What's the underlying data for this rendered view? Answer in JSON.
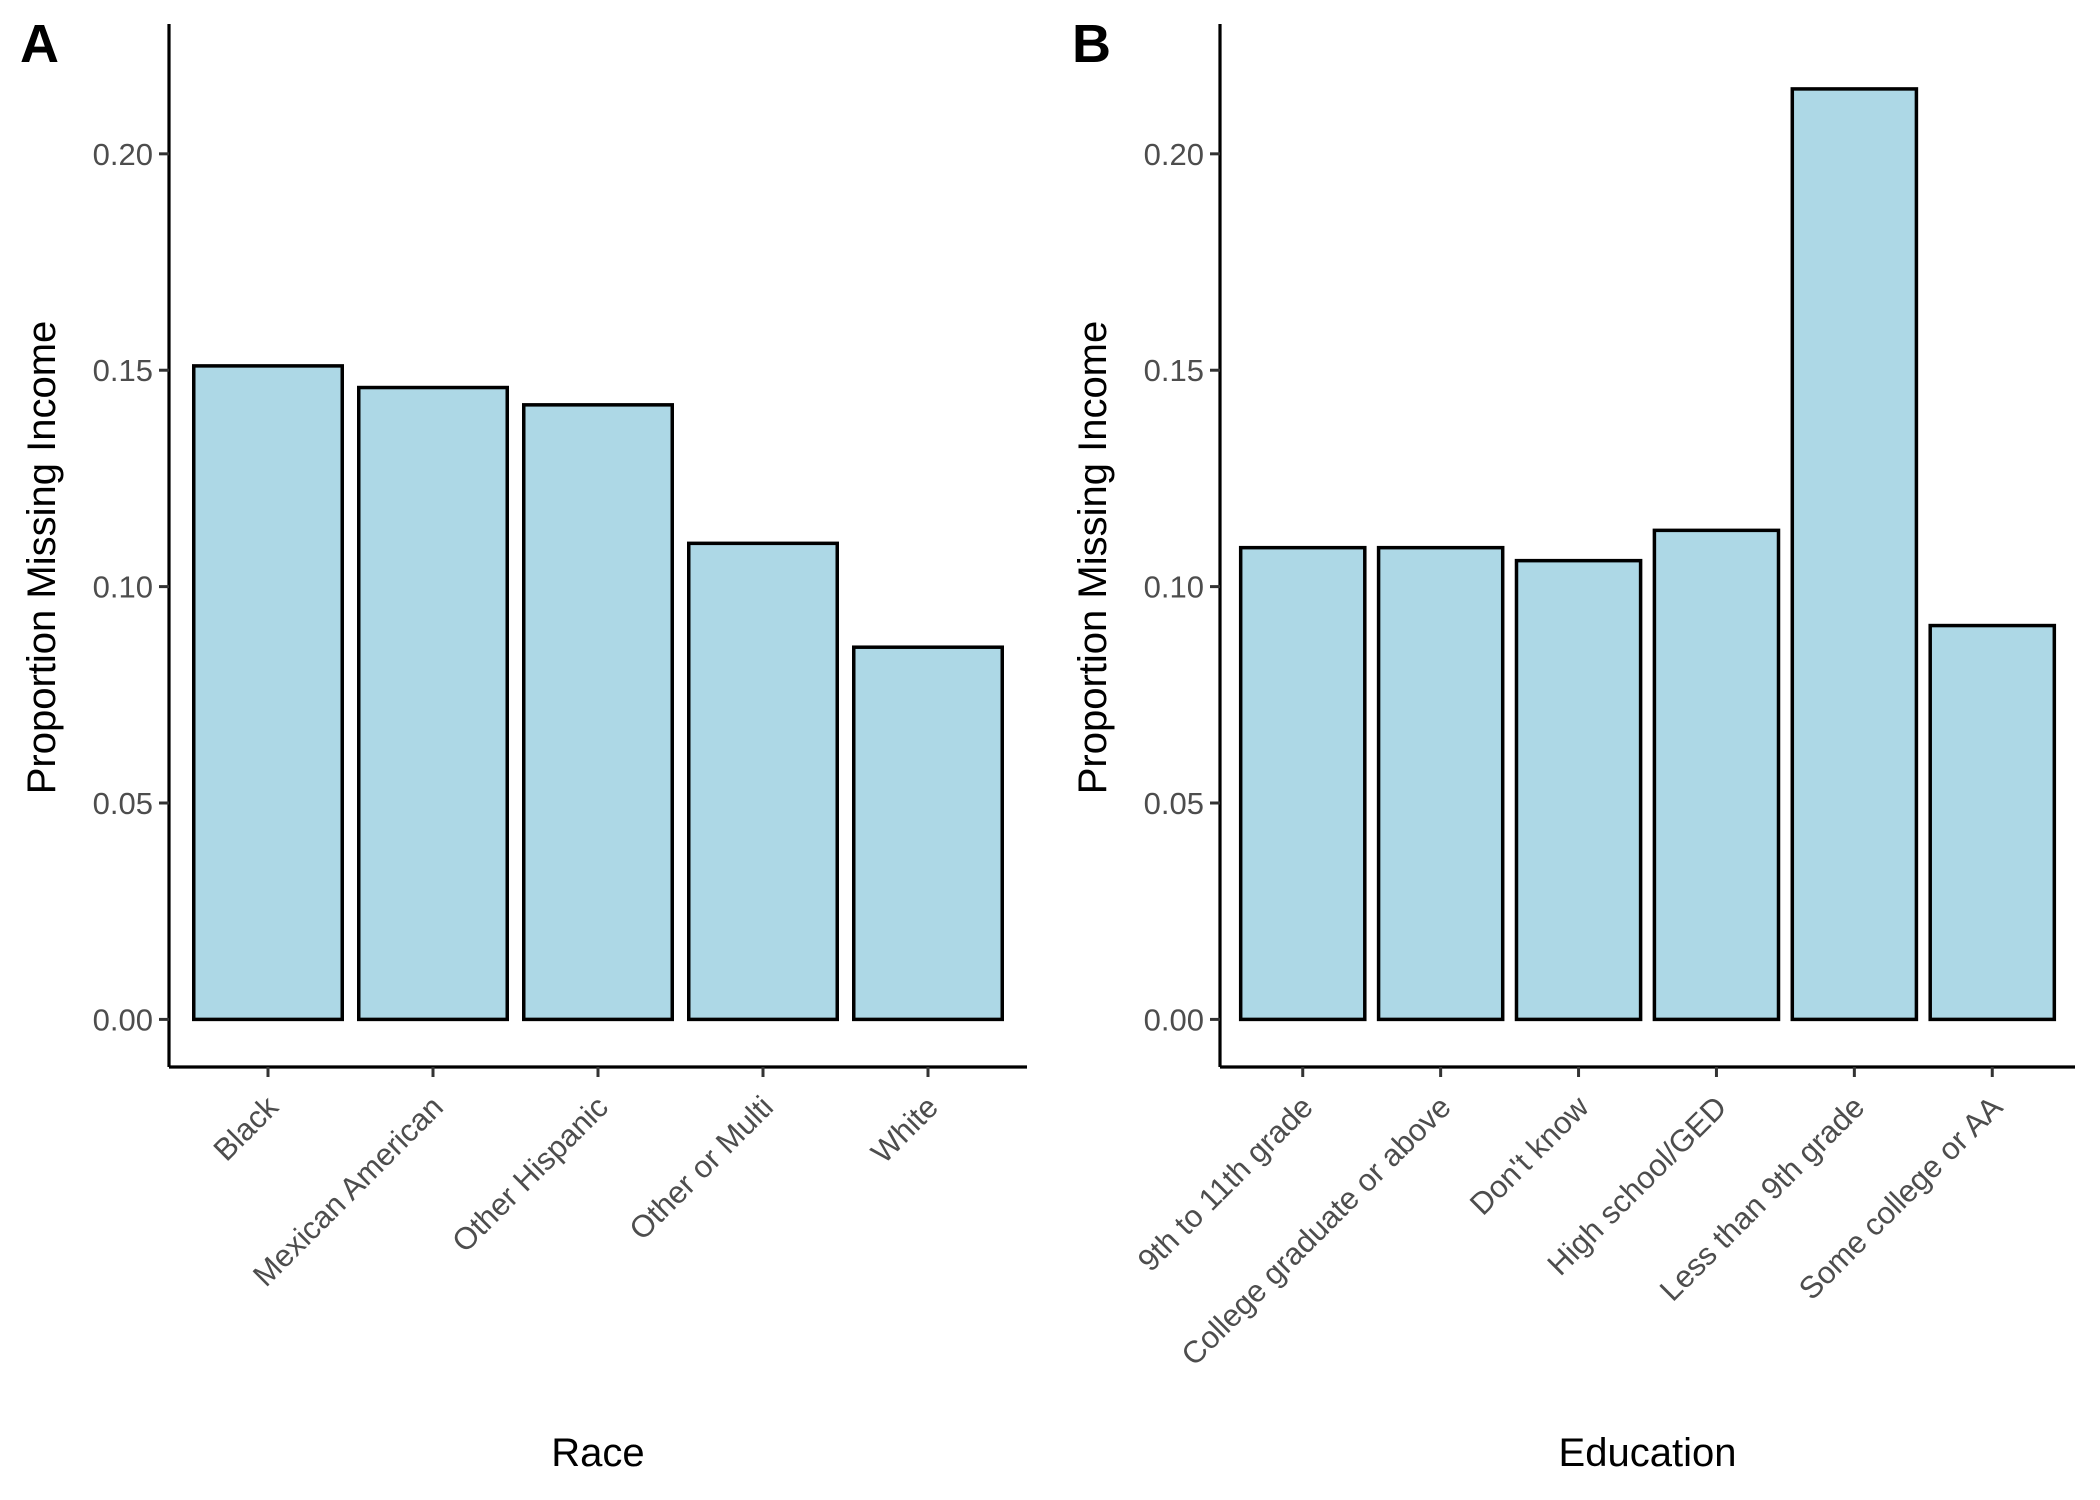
{
  "chart_data": [
    {
      "type": "bar",
      "panel_label": "A",
      "xlabel": "Race",
      "ylabel": "Proportion Missing Income",
      "categories": [
        "Black",
        "Mexican American",
        "Other Hispanic",
        "Other or Multi",
        "White"
      ],
      "values": [
        0.151,
        0.146,
        0.142,
        0.11,
        0.086
      ],
      "ylim": [
        -0.011,
        0.23
      ],
      "yticks": [
        0.0,
        0.05,
        0.1,
        0.15,
        0.2
      ],
      "ytick_labels": [
        "0.00",
        "0.05",
        "0.10",
        "0.15",
        "0.20"
      ],
      "grid": false,
      "legend": "none",
      "bar_fill": "#add8e6",
      "bar_outline": "#000000"
    },
    {
      "type": "bar",
      "panel_label": "B",
      "xlabel": "Education",
      "ylabel": "Proportion Missing Income",
      "categories": [
        "9th to 11th grade",
        "College graduate or above",
        "Don't know",
        "High school/GED",
        "Less than 9th grade",
        "Some college or AA"
      ],
      "values": [
        0.109,
        0.109,
        0.106,
        0.113,
        0.215,
        0.091
      ],
      "ylim": [
        -0.011,
        0.23
      ],
      "yticks": [
        0.0,
        0.05,
        0.1,
        0.15,
        0.2
      ],
      "ytick_labels": [
        "0.00",
        "0.05",
        "0.10",
        "0.15",
        "0.20"
      ],
      "grid": false,
      "legend": "none",
      "bar_fill": "#add8e6",
      "bar_outline": "#000000"
    }
  ]
}
